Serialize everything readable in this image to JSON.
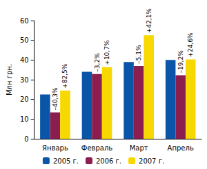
{
  "chart_data": {
    "type": "bar",
    "y_label": "Млн грн.",
    "categories": [
      "Январь",
      "Февраль",
      "Март",
      "Апрель"
    ],
    "series": [
      {
        "name": "2005 г.",
        "color": "#0b55a8",
        "values": [
          22.5,
          34,
          39,
          40
        ]
      },
      {
        "name": "2006 г.",
        "color": "#8b1e4f",
        "values": [
          13.4,
          32.9,
          37,
          32.3
        ]
      },
      {
        "name": "2007 г.",
        "color": "#f7d800",
        "values": [
          24.5,
          36.4,
          52.6,
          40.3
        ]
      }
    ],
    "annotations": [
      {
        "series": "2006 г.",
        "category": "Январь",
        "text": "–40,3%"
      },
      {
        "series": "2006 г.",
        "category": "Февраль",
        "text": "–3,2%"
      },
      {
        "series": "2006 г.",
        "category": "Март",
        "text": "–5,1%"
      },
      {
        "series": "2006 г.",
        "category": "Апрель",
        "text": "–19,2%"
      },
      {
        "series": "2007 г.",
        "category": "Январь",
        "text": "+82,5%"
      },
      {
        "series": "2007 г.",
        "category": "Февраль",
        "text": "+10,7%"
      },
      {
        "series": "2007 г.",
        "category": "Март",
        "text": "+42,1%"
      },
      {
        "series": "2007 г.",
        "category": "Апрель",
        "text": "+24,6%"
      }
    ],
    "ylim": [
      0,
      60
    ],
    "yticks": [
      0,
      10,
      20,
      30,
      40,
      50,
      60
    ],
    "grid": false,
    "legend": "bottom"
  }
}
